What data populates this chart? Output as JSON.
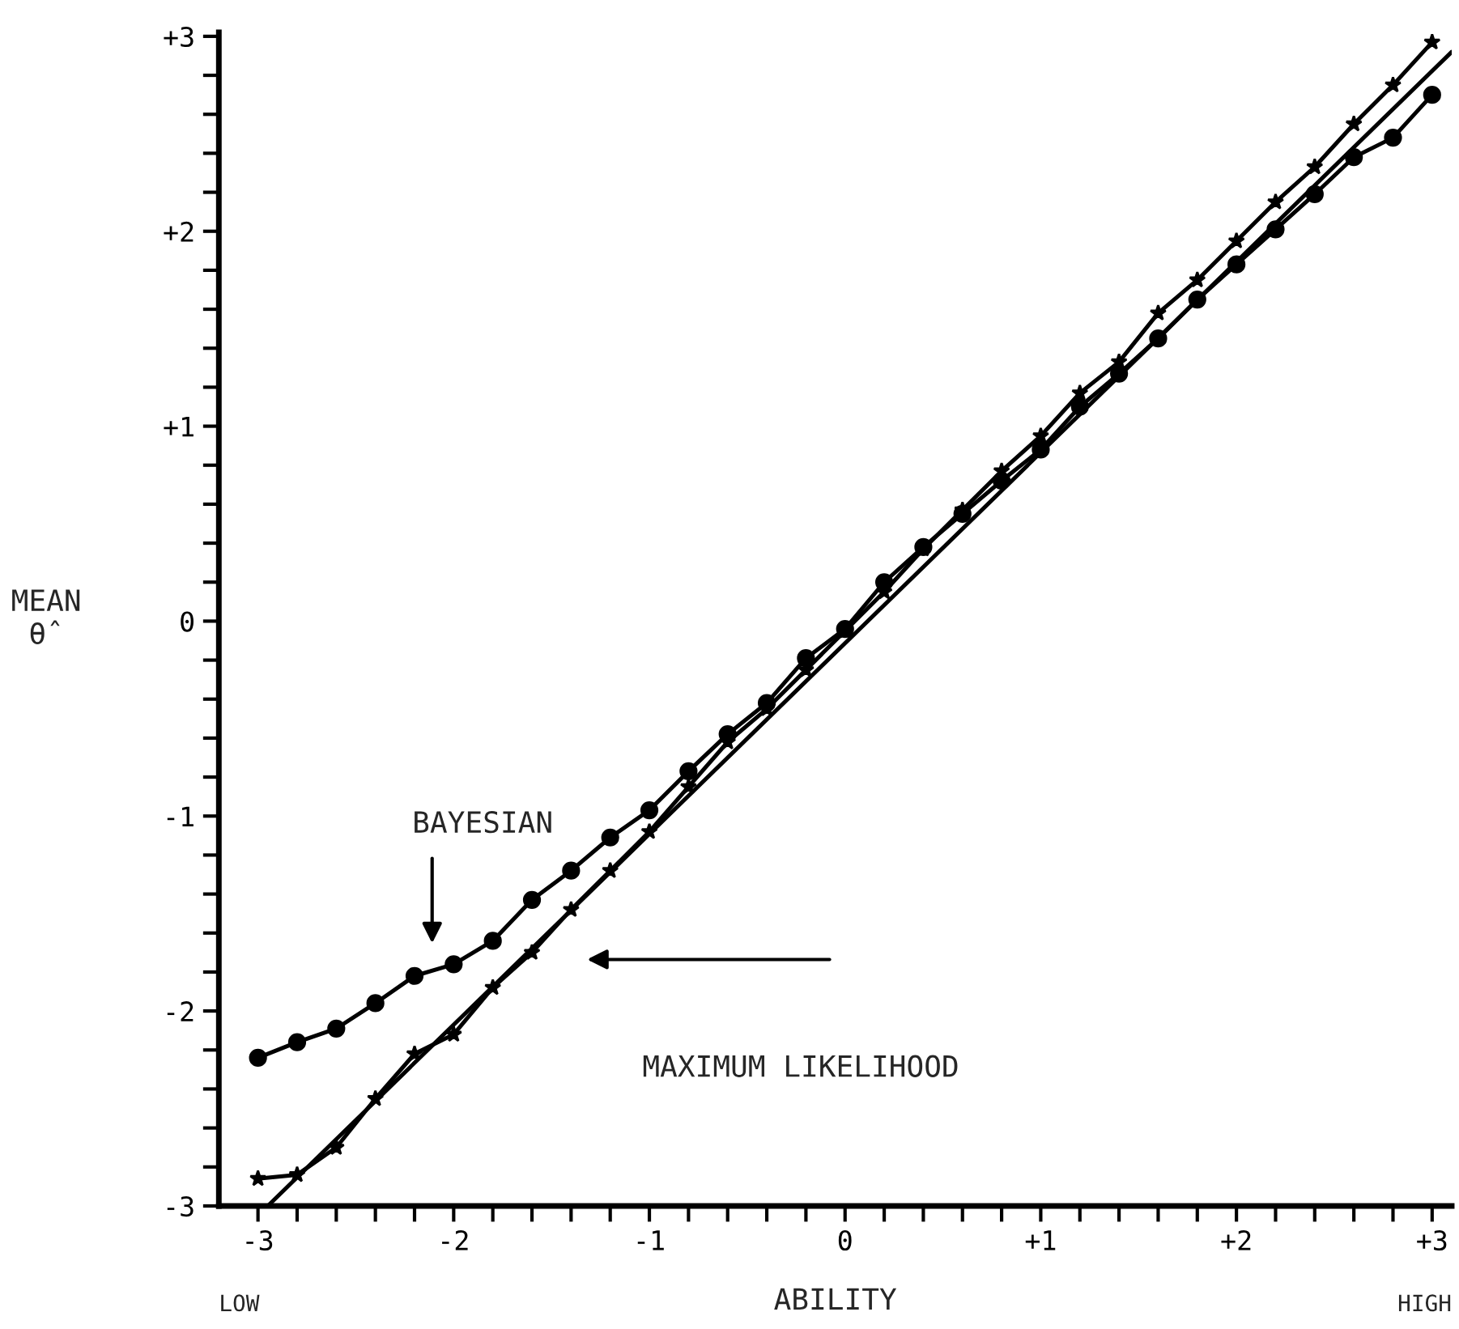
{
  "chart_data": {
    "type": "line",
    "xlabel": "ABILITY",
    "ylabel": "MEAN\nθ̂",
    "x": [
      -3.0,
      -2.8,
      -2.6,
      -2.4,
      -2.2,
      -2.0,
      -1.8,
      -1.6,
      -1.4,
      -1.2,
      -1.0,
      -0.8,
      -0.6,
      -0.4,
      -0.2,
      0.0,
      0.2,
      0.4,
      0.6,
      0.8,
      1.0,
      1.2,
      1.4,
      1.6,
      1.8,
      2.0,
      2.2,
      2.4,
      2.6,
      2.8,
      3.0
    ],
    "series": [
      {
        "color": "#000000",
        "marker": "circle",
        "values": [
          -2.24,
          -2.16,
          -2.09,
          -1.96,
          -1.82,
          -1.76,
          -1.64,
          -1.43,
          -1.28,
          -1.11,
          -0.97,
          -0.77,
          -0.58,
          -0.42,
          -0.19,
          -0.04,
          0.2,
          0.38,
          0.55,
          0.72,
          0.88,
          1.1,
          1.27,
          1.45,
          1.65,
          1.83,
          2.01,
          2.19,
          2.38,
          2.48,
          2.7
        ]
      },
      {
        "color": "#000000",
        "marker": "star",
        "values": [
          -2.86,
          -2.84,
          -2.7,
          -2.45,
          -2.22,
          -2.12,
          -1.88,
          -1.7,
          -1.48,
          -1.28,
          -1.08,
          -0.85,
          -0.62,
          -0.45,
          -0.25,
          -0.05,
          0.15,
          0.37,
          0.57,
          0.77,
          0.95,
          1.17,
          1.33,
          1.58,
          1.75,
          1.95,
          2.15,
          2.33,
          2.55,
          2.75,
          2.97
        ]
      },
      {
        "color": "#000000",
        "marker": "none",
        "x": [
          -2.95,
          3.1
        ],
        "values": [
          -3.0,
          2.92
        ]
      }
    ],
    "xlim": [
      -3.2,
      3.1
    ],
    "ylim": [
      -3.0,
      3.02
    ],
    "xticks": [
      {
        "value": -3,
        "label": "-3"
      },
      {
        "value": -2.8,
        "label": null
      },
      {
        "value": -2.6,
        "label": null
      },
      {
        "value": -2.4,
        "label": null
      },
      {
        "value": -2.2,
        "label": null
      },
      {
        "value": -2,
        "label": "-2"
      },
      {
        "value": -1.8,
        "label": null
      },
      {
        "value": -1.6,
        "label": null
      },
      {
        "value": -1.4,
        "label": null
      },
      {
        "value": -1.2,
        "label": null
      },
      {
        "value": -1,
        "label": "-1"
      },
      {
        "value": -0.8,
        "label": null
      },
      {
        "value": -0.6,
        "label": null
      },
      {
        "value": -0.4,
        "label": null
      },
      {
        "value": -0.2,
        "label": null
      },
      0,
      {
        "value": 0.2,
        "label": null
      },
      {
        "value": 0.4,
        "label": null
      },
      {
        "value": 0.6,
        "label": null
      },
      {
        "value": 0.8,
        "label": null
      },
      {
        "value": 1,
        "label": "+1"
      },
      {
        "value": 1.2,
        "label": null
      },
      {
        "value": 1.4,
        "label": null
      },
      {
        "value": 1.6,
        "label": null
      },
      {
        "value": 1.8,
        "label": null
      },
      {
        "value": 2,
        "label": "+2"
      },
      {
        "value": 2.2,
        "label": null
      },
      {
        "value": 2.4,
        "label": null
      },
      {
        "value": 2.6,
        "label": null
      },
      {
        "value": 2.8,
        "label": null
      },
      {
        "value": 3,
        "label": "+3"
      }
    ],
    "yticks": [
      {
        "value": -3,
        "label": "-3"
      },
      {
        "value": -2.8,
        "label": null
      },
      {
        "value": -2.6,
        "label": null
      },
      {
        "value": -2.4,
        "label": null
      },
      {
        "value": -2.2,
        "label": null
      },
      {
        "value": -2,
        "label": "-2"
      },
      {
        "value": -1.8,
        "label": null
      },
      {
        "value": -1.6,
        "label": null
      },
      {
        "value": -1.4,
        "label": null
      },
      {
        "value": -1.2,
        "label": null
      },
      {
        "value": -1,
        "label": "-1"
      },
      {
        "value": -0.8,
        "label": null
      },
      {
        "value": -0.6,
        "label": null
      },
      {
        "value": -0.4,
        "label": null
      },
      {
        "value": -0.2,
        "label": null
      },
      0,
      {
        "value": 0.2,
        "label": null
      },
      {
        "value": 0.4,
        "label": null
      },
      {
        "value": 0.6,
        "label": null
      },
      {
        "value": 0.8,
        "label": null
      },
      {
        "value": 1,
        "label": "+1"
      },
      {
        "value": 1.2,
        "label": null
      },
      {
        "value": 1.4,
        "label": null
      },
      {
        "value": 1.6,
        "label": null
      },
      {
        "value": 1.8,
        "label": null
      },
      {
        "value": 2,
        "label": "+2"
      },
      {
        "value": 2.2,
        "label": null
      },
      {
        "value": 2.4,
        "label": null
      },
      {
        "value": 2.6,
        "label": null
      },
      {
        "value": 2.8,
        "label": null
      },
      {
        "value": 3,
        "label": "+3"
      }
    ],
    "annotations": [
      "BAYESIAN",
      "MAXIMUM LIKELIHOOD",
      "LOW",
      "HIGH"
    ],
    "grid": false,
    "legend": false
  }
}
